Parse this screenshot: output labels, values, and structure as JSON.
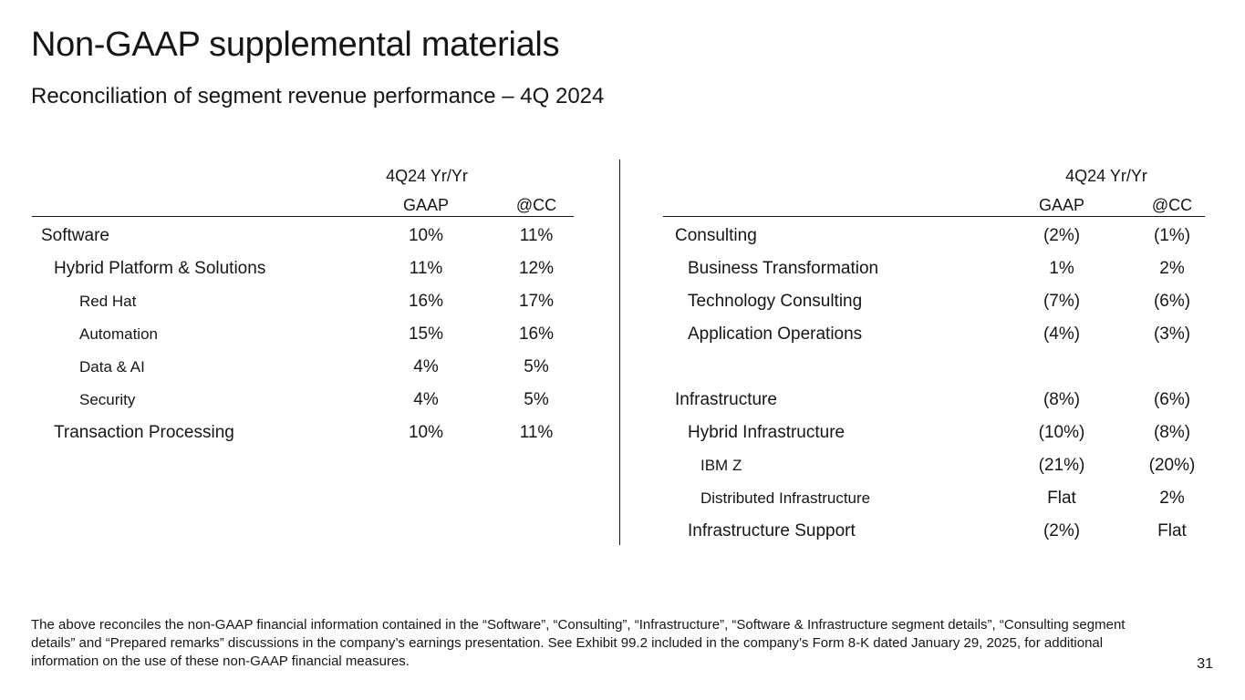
{
  "title": "Non-GAAP supplemental materials",
  "subtitle": "Reconciliation of segment revenue performance – 4Q 2024",
  "left_table": {
    "period_header": "4Q24 Yr/Yr",
    "col_gaap": "GAAP",
    "col_cc": "@CC",
    "rows": [
      {
        "label": "Software",
        "gaap": "10%",
        "cc": "11%"
      },
      {
        "label": "Hybrid Platform & Solutions",
        "gaap": "11%",
        "cc": "12%"
      },
      {
        "label": "Red Hat",
        "gaap": "16%",
        "cc": "17%"
      },
      {
        "label": "Automation",
        "gaap": "15%",
        "cc": "16%"
      },
      {
        "label": "Data & AI",
        "gaap": "4%",
        "cc": "5%"
      },
      {
        "label": "Security",
        "gaap": "4%",
        "cc": "5%"
      },
      {
        "label": "Transaction Processing",
        "gaap": "10%",
        "cc": "11%"
      }
    ]
  },
  "right_table": {
    "period_header": "4Q24 Yr/Yr",
    "col_gaap": "GAAP",
    "col_cc": "@CC",
    "rows": [
      {
        "label": "Consulting",
        "gaap": "(2%)",
        "cc": "(1%)"
      },
      {
        "label": "Business Transformation",
        "gaap": "1%",
        "cc": "2%"
      },
      {
        "label": "Technology Consulting",
        "gaap": "(7%)",
        "cc": "(6%)"
      },
      {
        "label": "Application Operations",
        "gaap": "(4%)",
        "cc": "(3%)"
      },
      {
        "label": "",
        "gaap": "",
        "cc": ""
      },
      {
        "label": "Infrastructure",
        "gaap": "(8%)",
        "cc": "(6%)"
      },
      {
        "label": "Hybrid Infrastructure",
        "gaap": "(10%)",
        "cc": "(8%)"
      },
      {
        "label": "IBM Z",
        "gaap": "(21%)",
        "cc": "(20%)"
      },
      {
        "label": "Distributed Infrastructure",
        "gaap": "Flat",
        "cc": "2%"
      },
      {
        "label": "Infrastructure Support",
        "gaap": "(2%)",
        "cc": "Flat"
      }
    ]
  },
  "footnote": "The above reconciles the non-GAAP financial information contained in the “Software”, “Consulting”, “Infrastructure”, “Software & Infrastructure segment details”, “Consulting segment details” and “Prepared remarks” discussions in the company’s earnings presentation. See Exhibit 99.2 included in the company’s Form 8-K dated January 29, 2025, for additional information on the use of these non-GAAP financial measures.",
  "page_number": "31"
}
